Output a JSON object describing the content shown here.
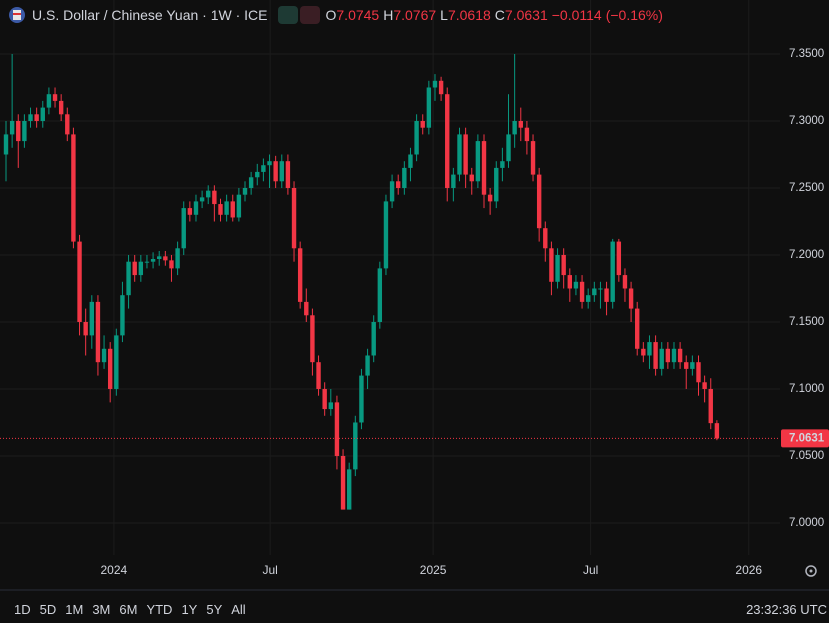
{
  "header": {
    "title": "U.S. Dollar / Chinese Yuan · 1W · ICE",
    "ohlc": [
      {
        "label": "O",
        "value": 7.0745
      },
      {
        "label": "H",
        "value": 7.0767
      },
      {
        "label": "L",
        "value": 7.0618
      },
      {
        "label": "C",
        "value": 7.0631
      }
    ],
    "change": {
      "value": -0.0114,
      "label": "−0.0114"
    },
    "change_percent": {
      "value": -0.16,
      "label": "(−0.16%)"
    }
  },
  "toolbar": {
    "ranges": [
      "1D",
      "5D",
      "1M",
      "3M",
      "6M",
      "YTD",
      "1Y",
      "5Y",
      "All"
    ],
    "clock": "23:32:36 UTC"
  },
  "chart_data": {
    "type": "candlestick",
    "up_color": "#089981",
    "down_color": "#f23645",
    "grid": true,
    "xlim": [
      -0.98,
      126.3
    ],
    "ylim": [
      6.9761,
      7.3903
    ],
    "xticks": [
      {
        "value": 17.6,
        "label": "2024"
      },
      {
        "value": 43.1,
        "label": "Jul"
      },
      {
        "value": 69.7,
        "label": "2025"
      },
      {
        "value": 95.4,
        "label": "Jul"
      },
      {
        "value": 121.2,
        "label": "2026"
      }
    ],
    "yticks": [
      {
        "value": 7.0,
        "label": "7.0000"
      },
      {
        "value": 7.05,
        "label": "7.0500"
      },
      {
        "value": 7.1,
        "label": "7.1000"
      },
      {
        "value": 7.15,
        "label": "7.1500"
      },
      {
        "value": 7.2,
        "label": "7.2000"
      },
      {
        "value": 7.25,
        "label": "7.2500"
      },
      {
        "value": 7.3,
        "label": "7.3000"
      },
      {
        "value": 7.35,
        "label": "7.3500"
      }
    ],
    "last_price": 7.0631,
    "candles": [
      [
        7.275,
        7.3,
        7.255,
        7.29
      ],
      [
        7.29,
        7.35,
        7.28,
        7.3
      ],
      [
        7.3,
        7.305,
        7.265,
        7.285
      ],
      [
        7.285,
        7.305,
        7.28,
        7.3
      ],
      [
        7.3,
        7.31,
        7.295,
        7.305
      ],
      [
        7.305,
        7.31,
        7.295,
        7.3
      ],
      [
        7.3,
        7.315,
        7.295,
        7.31
      ],
      [
        7.31,
        7.325,
        7.305,
        7.32
      ],
      [
        7.32,
        7.325,
        7.31,
        7.315
      ],
      [
        7.315,
        7.32,
        7.3,
        7.305
      ],
      [
        7.305,
        7.31,
        7.285,
        7.29
      ],
      [
        7.29,
        7.295,
        7.205,
        7.21
      ],
      [
        7.21,
        7.215,
        7.14,
        7.15
      ],
      [
        7.15,
        7.16,
        7.125,
        7.14
      ],
      [
        7.14,
        7.17,
        7.13,
        7.165
      ],
      [
        7.165,
        7.17,
        7.11,
        7.12
      ],
      [
        7.12,
        7.14,
        7.115,
        7.13
      ],
      [
        7.13,
        7.135,
        7.09,
        7.1
      ],
      [
        7.1,
        7.145,
        7.095,
        7.14
      ],
      [
        7.14,
        7.18,
        7.135,
        7.17
      ],
      [
        7.17,
        7.2,
        7.16,
        7.195
      ],
      [
        7.195,
        7.2,
        7.18,
        7.185
      ],
      [
        7.185,
        7.2,
        7.18,
        7.195
      ],
      [
        7.195,
        7.2,
        7.19,
        7.195
      ],
      [
        7.195,
        7.202,
        7.19,
        7.197
      ],
      [
        7.197,
        7.203,
        7.192,
        7.199
      ],
      [
        7.199,
        7.203,
        7.192,
        7.196
      ],
      [
        7.196,
        7.2,
        7.18,
        7.19
      ],
      [
        7.19,
        7.21,
        7.185,
        7.205
      ],
      [
        7.205,
        7.24,
        7.2,
        7.235
      ],
      [
        7.235,
        7.24,
        7.225,
        7.23
      ],
      [
        7.23,
        7.245,
        7.225,
        7.24
      ],
      [
        7.24,
        7.248,
        7.235,
        7.243
      ],
      [
        7.243,
        7.252,
        7.238,
        7.248
      ],
      [
        7.248,
        7.252,
        7.225,
        7.238
      ],
      [
        7.238,
        7.242,
        7.225,
        7.23
      ],
      [
        7.23,
        7.245,
        7.225,
        7.24
      ],
      [
        7.24,
        7.245,
        7.225,
        7.228
      ],
      [
        7.228,
        7.25,
        7.225,
        7.245
      ],
      [
        7.245,
        7.255,
        7.24,
        7.25
      ],
      [
        7.25,
        7.262,
        7.245,
        7.258
      ],
      [
        7.258,
        7.268,
        7.252,
        7.262
      ],
      [
        7.262,
        7.272,
        7.255,
        7.267
      ],
      [
        7.267,
        7.275,
        7.25,
        7.27
      ],
      [
        7.27,
        7.274,
        7.25,
        7.255
      ],
      [
        7.255,
        7.275,
        7.25,
        7.27
      ],
      [
        7.27,
        7.275,
        7.245,
        7.25
      ],
      [
        7.25,
        7.255,
        7.195,
        7.205
      ],
      [
        7.205,
        7.21,
        7.16,
        7.165
      ],
      [
        7.165,
        7.175,
        7.15,
        7.155
      ],
      [
        7.155,
        7.16,
        7.11,
        7.12
      ],
      [
        7.12,
        7.125,
        7.095,
        7.1
      ],
      [
        7.1,
        7.105,
        7.08,
        7.085
      ],
      [
        7.085,
        7.1,
        7.08,
        7.09
      ],
      [
        7.09,
        7.095,
        7.04,
        7.05
      ],
      [
        7.05,
        7.055,
        7.01,
        7.01
      ],
      [
        7.01,
        7.045,
        7.01,
        7.04
      ],
      [
        7.04,
        7.08,
        7.035,
        7.075
      ],
      [
        7.075,
        7.115,
        7.07,
        7.11
      ],
      [
        7.11,
        7.13,
        7.1,
        7.125
      ],
      [
        7.125,
        7.155,
        7.12,
        7.15
      ],
      [
        7.15,
        7.195,
        7.145,
        7.19
      ],
      [
        7.19,
        7.245,
        7.185,
        7.24
      ],
      [
        7.24,
        7.26,
        7.235,
        7.255
      ],
      [
        7.255,
        7.26,
        7.245,
        7.25
      ],
      [
        7.25,
        7.27,
        7.245,
        7.265
      ],
      [
        7.265,
        7.28,
        7.255,
        7.275
      ],
      [
        7.275,
        7.305,
        7.27,
        7.3
      ],
      [
        7.3,
        7.305,
        7.29,
        7.295
      ],
      [
        7.295,
        7.33,
        7.29,
        7.325
      ],
      [
        7.325,
        7.335,
        7.315,
        7.33
      ],
      [
        7.33,
        7.333,
        7.315,
        7.32
      ],
      [
        7.32,
        7.325,
        7.24,
        7.25
      ],
      [
        7.25,
        7.265,
        7.24,
        7.26
      ],
      [
        7.26,
        7.295,
        7.255,
        7.29
      ],
      [
        7.29,
        7.295,
        7.25,
        7.26
      ],
      [
        7.26,
        7.265,
        7.245,
        7.255
      ],
      [
        7.255,
        7.29,
        7.25,
        7.285
      ],
      [
        7.285,
        7.29,
        7.235,
        7.245
      ],
      [
        7.245,
        7.25,
        7.23,
        7.24
      ],
      [
        7.24,
        7.27,
        7.235,
        7.265
      ],
      [
        7.265,
        7.28,
        7.255,
        7.27
      ],
      [
        7.27,
        7.32,
        7.265,
        7.29
      ],
      [
        7.29,
        7.35,
        7.28,
        7.3
      ],
      [
        7.3,
        7.31,
        7.285,
        7.295
      ],
      [
        7.295,
        7.3,
        7.275,
        7.285
      ],
      [
        7.285,
        7.29,
        7.255,
        7.26
      ],
      [
        7.26,
        7.265,
        7.21,
        7.22
      ],
      [
        7.22,
        7.225,
        7.195,
        7.205
      ],
      [
        7.205,
        7.21,
        7.17,
        7.18
      ],
      [
        7.18,
        7.205,
        7.175,
        7.2
      ],
      [
        7.2,
        7.205,
        7.175,
        7.185
      ],
      [
        7.185,
        7.19,
        7.165,
        7.175
      ],
      [
        7.175,
        7.185,
        7.17,
        7.18
      ],
      [
        7.18,
        7.185,
        7.16,
        7.165
      ],
      [
        7.165,
        7.175,
        7.16,
        7.17
      ],
      [
        7.17,
        7.18,
        7.165,
        7.175
      ],
      [
        7.175,
        7.18,
        7.16,
        7.175
      ],
      [
        7.175,
        7.18,
        7.155,
        7.165
      ],
      [
        7.165,
        7.212,
        7.16,
        7.21
      ],
      [
        7.21,
        7.212,
        7.18,
        7.185
      ],
      [
        7.185,
        7.19,
        7.165,
        7.175
      ],
      [
        7.175,
        7.18,
        7.15,
        7.16
      ],
      [
        7.16,
        7.165,
        7.125,
        7.13
      ],
      [
        7.13,
        7.135,
        7.12,
        7.125
      ],
      [
        7.125,
        7.14,
        7.115,
        7.135
      ],
      [
        7.135,
        7.14,
        7.11,
        7.115
      ],
      [
        7.115,
        7.135,
        7.11,
        7.13
      ],
      [
        7.13,
        7.135,
        7.115,
        7.12
      ],
      [
        7.12,
        7.135,
        7.115,
        7.13
      ],
      [
        7.13,
        7.135,
        7.115,
        7.12
      ],
      [
        7.12,
        7.125,
        7.1,
        7.115
      ],
      [
        7.115,
        7.125,
        7.11,
        7.12
      ],
      [
        7.12,
        7.125,
        7.095,
        7.105
      ],
      [
        7.105,
        7.11,
        7.09,
        7.1
      ],
      [
        7.1,
        7.108,
        7.07,
        7.0745
      ],
      [
        7.0745,
        7.0767,
        7.0618,
        7.0631
      ]
    ]
  }
}
